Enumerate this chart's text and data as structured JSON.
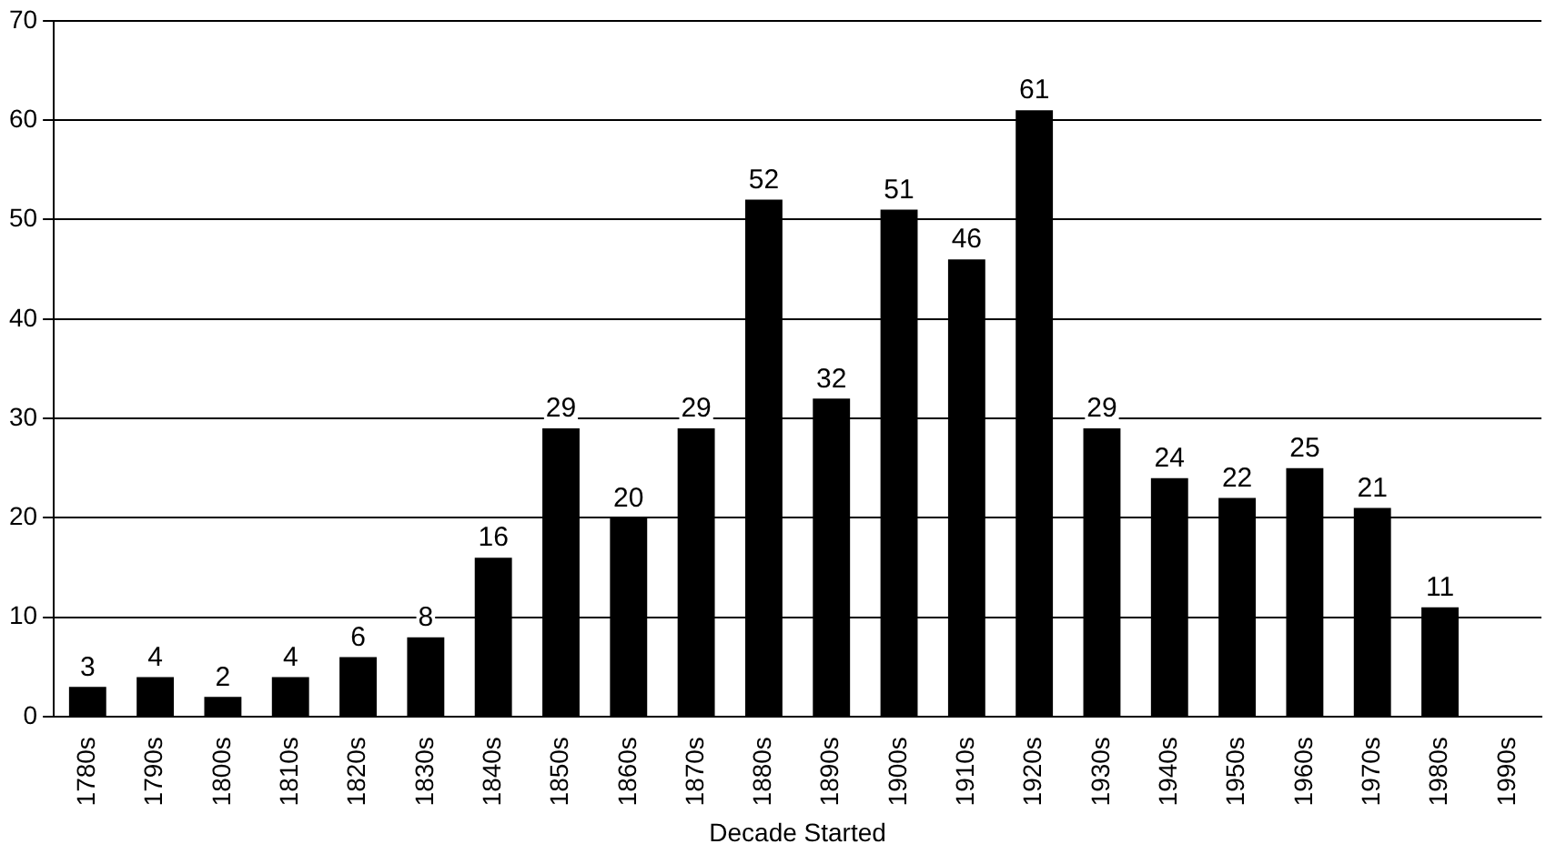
{
  "chart_data": {
    "type": "bar",
    "xlabel": "Decade Started",
    "categories": [
      "1780s",
      "1790s",
      "1800s",
      "1810s",
      "1820s",
      "1830s",
      "1840s",
      "1850s",
      "1860s",
      "1870s",
      "1880s",
      "1890s",
      "1900s",
      "1910s",
      "1920s",
      "1930s",
      "1940s",
      "1950s",
      "1960s",
      "1970s",
      "1980s",
      "1990s"
    ],
    "values": [
      3,
      4,
      2,
      4,
      6,
      8,
      16,
      29,
      20,
      29,
      52,
      32,
      51,
      46,
      61,
      29,
      24,
      22,
      25,
      21,
      11,
      null
    ],
    "color": "#000000",
    "ylim": [
      0,
      70
    ],
    "yticks": [
      0,
      10,
      20,
      30,
      40,
      50,
      60,
      70
    ],
    "grid": "y",
    "data_labels": true,
    "legend": false
  }
}
